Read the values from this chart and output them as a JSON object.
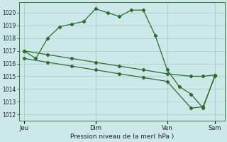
{
  "xlabel": "Pression niveau de la mer( hPa )",
  "ylim": [
    1011.5,
    1020.8
  ],
  "yticks": [
    1012,
    1013,
    1014,
    1015,
    1016,
    1017,
    1018,
    1019,
    1020
  ],
  "bg_color": "#cce8e8",
  "grid_color": "#aacccc",
  "line_color": "#2d6e2d",
  "xtick_labels": [
    "Jeu",
    "Dim",
    "Ven",
    "Sam"
  ],
  "xtick_positions": [
    0,
    30,
    60,
    80
  ],
  "xlim": [
    -2,
    84
  ],
  "line1_x": [
    0,
    5,
    10,
    15,
    20,
    25,
    30,
    35,
    40,
    45,
    50,
    55,
    60,
    65,
    70,
    75,
    80
  ],
  "line1_y": [
    1017.0,
    1016.4,
    1018.0,
    1018.9,
    1019.1,
    1019.3,
    1020.3,
    1020.0,
    1019.7,
    1020.2,
    1020.2,
    1018.2,
    1015.5,
    1014.2,
    1013.6,
    1012.5,
    1015.1
  ],
  "line2_x": [
    0,
    10,
    20,
    30,
    40,
    50,
    60,
    70,
    75,
    80
  ],
  "line2_y": [
    1017.0,
    1016.7,
    1016.4,
    1016.1,
    1015.8,
    1015.5,
    1015.2,
    1015.0,
    1015.0,
    1015.1
  ],
  "line3_x": [
    0,
    10,
    20,
    30,
    40,
    50,
    60,
    70,
    75,
    80
  ],
  "line3_y": [
    1016.4,
    1016.1,
    1015.8,
    1015.5,
    1015.2,
    1014.9,
    1014.6,
    1012.5,
    1012.6,
    1015.0
  ]
}
